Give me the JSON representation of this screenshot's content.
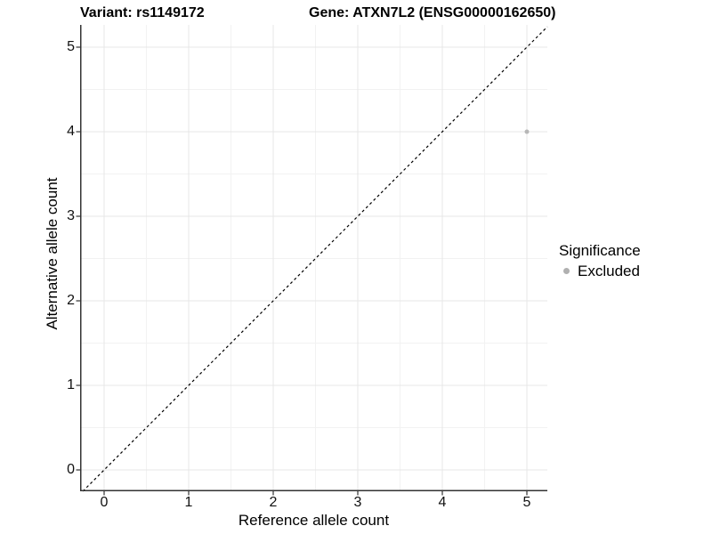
{
  "header": {
    "variant_title": "Variant: rs1149172",
    "gene_title": "Gene: ATXN7L2 (ENSG00000162650)"
  },
  "chart_data": {
    "type": "scatter",
    "titles": {
      "left": "Variant: rs1149172",
      "right": "Gene: ATXN7L2 (ENSG00000162650)"
    },
    "xlabel": "Reference allele count",
    "ylabel": "Alternative allele count",
    "xlim": [
      -0.26,
      5.24
    ],
    "ylim": [
      -0.25,
      5.26
    ],
    "x_ticks": [
      0,
      1,
      2,
      3,
      4,
      5
    ],
    "y_ticks": [
      0,
      1,
      2,
      3,
      4,
      5
    ],
    "minor_grid_step": 0.5,
    "grid": true,
    "series": [
      {
        "name": "Excluded",
        "color": "#b7b7b7",
        "points": [
          {
            "x": 5,
            "y": 4
          }
        ]
      }
    ],
    "reference_line": {
      "kind": "identity y=x",
      "style": "dashed",
      "color": "#000000"
    },
    "legend": {
      "title": "Significance",
      "position": "right",
      "entries": [
        {
          "label": "Excluded",
          "color": "#b0b0b0"
        }
      ]
    },
    "colors": {
      "background": "#ffffff",
      "major_grid": "#e7e7e7",
      "minor_grid": "#f2f2f2",
      "axis_line": "#333333",
      "point": "#b7b7b7"
    }
  }
}
